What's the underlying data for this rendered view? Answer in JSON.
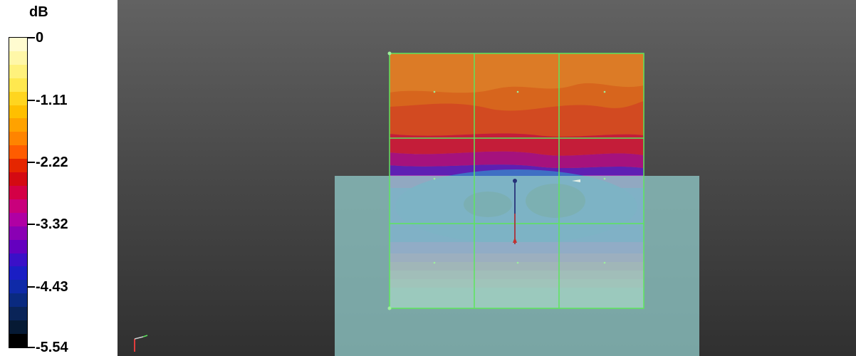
{
  "legend": {
    "unit": "dB",
    "ticks": [
      "0",
      "-1.11",
      "-2.22",
      "-3.32",
      "-4.43",
      "-5.54"
    ],
    "bands": [
      "#fffbd0",
      "#fff7a8",
      "#fff17c",
      "#ffe84f",
      "#ffd51f",
      "#ffbf00",
      "#ffa200",
      "#ff8400",
      "#ff5c00",
      "#e52600",
      "#d40a12",
      "#d40046",
      "#c9007c",
      "#b000a4",
      "#8a00b4",
      "#6400bf",
      "#3a10c8",
      "#1a1ec4",
      "#0f2aa8",
      "#0a2a80",
      "#0a2458",
      "#061a34",
      "#000000"
    ]
  },
  "colors": {
    "background_top": "#626262",
    "background_bottom": "#303030",
    "block": "#8ec6c5",
    "grid": "#5ce65c"
  },
  "viewport": {
    "axes_icon": "axes-triad-icon"
  }
}
